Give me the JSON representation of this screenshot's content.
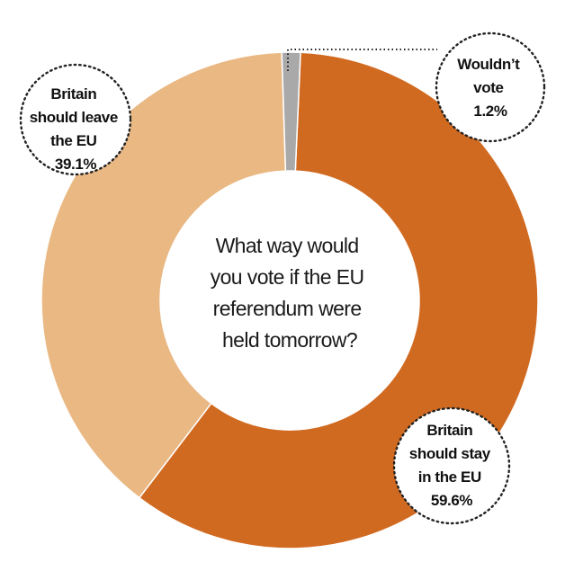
{
  "chart_data": {
    "type": "pie",
    "title": "What way would you vote if the EU referendum were held tomorrow?",
    "title_lines": [
      "What way would",
      "you vote if the EU",
      "referendum were",
      "held tomorrow?"
    ],
    "donut": true,
    "slices": [
      {
        "key": "stay",
        "label": "Britain should stay in the EU",
        "value": 59.6,
        "value_text": "59.6%",
        "label_lines": [
          "Britain",
          "should stay",
          "in the EU"
        ],
        "color": "#d16a21"
      },
      {
        "key": "leave",
        "label": "Britain should leave the EU",
        "value": 39.1,
        "value_text": "39.1%",
        "label_lines": [
          "Britain",
          "should leave",
          "the EU"
        ],
        "color": "#e9b883"
      },
      {
        "key": "wouldnt",
        "label": "Wouldn't vote",
        "value": 1.2,
        "value_text": "1.2%",
        "label_lines": [
          "Wouldn’t",
          "vote"
        ],
        "color": "#a9a9a9"
      }
    ]
  }
}
